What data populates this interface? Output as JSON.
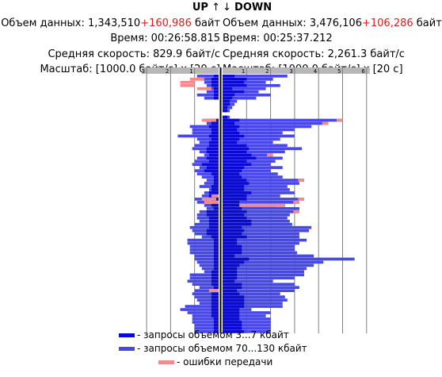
{
  "up": {
    "title": "UP",
    "title_arrow": "↑",
    "volume_label": "Объем данных:",
    "volume_value": "1,343,510",
    "volume_extra": "+160,986",
    "volume_unit": "байт",
    "time_label": "Время:",
    "time_value": "00:26:58.815",
    "speed_label": "Средняя скорость:",
    "speed_value": "829.9 байт/с",
    "scale_label": "Масштаб:",
    "scale_value": "[1000.0 байт/с] x [20 с]"
  },
  "down": {
    "title": "DOWN",
    "title_arrow": "↓",
    "volume_label": "Объем данных:",
    "volume_value": "3,476,106",
    "volume_extra": "+106,286",
    "volume_unit": "байт",
    "time_label": "Время:",
    "time_value": "00:25:37.212",
    "speed_label": "Средняя скорость:",
    "speed_value": "2,261.3 байт/с",
    "scale_label": "Масштаб:",
    "scale_value": "[1000.0 байт/с] x [20 с]"
  },
  "colors": {
    "small": "#0a0ad2",
    "large": "#4848e8",
    "error": "#f58a8a",
    "accent_red": "#e01b1b",
    "ruler": "#b8b8b8",
    "grid": "#808080"
  },
  "legend": [
    {
      "label": "- запросы объемом 3...7 кбайт",
      "color": "#0a0ad2"
    },
    {
      "label": "- запросы объемом 70...130 кбайт",
      "color": "#4848e8"
    },
    {
      "label": "- ошибки передачи",
      "color": "#f58a8a"
    }
  ],
  "chart_data": {
    "type": "bar",
    "orientation": "horizontal-butterfly",
    "up_axis": {
      "ticks": [
        "3",
        "2",
        "1"
      ],
      "xlim": [
        0,
        3
      ]
    },
    "down_axis": {
      "ticks": [
        "1",
        "2",
        "3",
        "4",
        "5",
        "6"
      ],
      "xlim": [
        0,
        6
      ]
    },
    "rows": [
      {
        "up": [
          0.2,
          0.9,
          0
        ],
        "down": [
          0.5,
          2.7,
          0
        ]
      },
      {
        "up": [
          0.3,
          0.7,
          1.2
        ],
        "down": [
          1.0,
          2.1,
          0
        ]
      },
      {
        "up": [
          0.3,
          0.6,
          1.6
        ],
        "down": [
          0.9,
          1.8,
          0
        ]
      },
      {
        "up": [
          0.3,
          0.5,
          1.6
        ],
        "down": [
          1.0,
          2.4,
          0
        ]
      },
      {
        "up": [
          0.2,
          0.4,
          0.9
        ],
        "down": [
          0.4,
          1.8,
          0
        ]
      },
      {
        "up": [
          0.2,
          0.5,
          0
        ],
        "down": [
          0.9,
          1.5,
          0
        ]
      },
      {
        "up": [
          0.2,
          0.9,
          0
        ],
        "down": [
          0.5,
          2.0,
          0
        ]
      },
      {
        "up": [
          0.2,
          0.6,
          0
        ],
        "down": [
          0.4,
          1.4,
          0
        ]
      },
      {
        "up": [
          0.0,
          0.0,
          0
        ],
        "down": [
          0.3,
          0.6,
          0
        ]
      },
      {
        "up": [
          0.0,
          0.0,
          0
        ],
        "down": [
          0.3,
          0.5,
          0
        ]
      },
      {
        "up": [
          0.0,
          0.0,
          0
        ],
        "down": [
          0.2,
          0.4,
          0
        ]
      },
      {
        "up": [
          0.0,
          0.0,
          0
        ],
        "down": [
          0.2,
          0.3,
          0
        ]
      },
      {
        "up": [
          0.0,
          0.0,
          0
        ],
        "down": [
          0.0,
          0.0,
          0
        ]
      },
      {
        "up": [
          0.0,
          0.0,
          0
        ],
        "down": [
          0.2,
          0.3,
          0
        ]
      },
      {
        "up": [
          0.3,
          0.6,
          0.7
        ],
        "down": [
          0.7,
          5.0,
          0.2
        ]
      },
      {
        "up": [
          0.3,
          0.5,
          0
        ],
        "down": [
          0.5,
          4.4,
          0.3
        ]
      },
      {
        "up": [
          0.4,
          1.2,
          0
        ],
        "down": [
          0.7,
          3.7,
          0
        ]
      },
      {
        "up": [
          0.3,
          1.1,
          0
        ],
        "down": [
          0.6,
          3.0,
          0
        ]
      },
      {
        "up": [
          0.3,
          1.1,
          0
        ],
        "down": [
          0.7,
          2.5,
          0
        ]
      },
      {
        "up": [
          0.4,
          1.7,
          0
        ],
        "down": [
          0.9,
          3.0,
          0
        ]
      },
      {
        "up": [
          0.3,
          0.9,
          0
        ],
        "down": [
          0.7,
          2.4,
          0
        ]
      },
      {
        "up": [
          0.4,
          0.8,
          0
        ],
        "down": [
          0.6,
          2.1,
          0
        ]
      },
      {
        "up": [
          0.4,
          1.0,
          0
        ],
        "down": [
          1.0,
          2.7,
          0
        ]
      },
      {
        "up": [
          0.5,
          1.1,
          0
        ],
        "down": [
          1.1,
          3.3,
          0
        ]
      },
      {
        "up": [
          0.5,
          0.8,
          0
        ],
        "down": [
          1.0,
          2.6,
          0
        ]
      },
      {
        "up": [
          0.4,
          0.6,
          0
        ],
        "down": [
          1.2,
          2.1,
          0.2
        ]
      },
      {
        "up": [
          0.5,
          0.9,
          0
        ],
        "down": [
          1.4,
          2.5,
          0
        ]
      },
      {
        "up": [
          0.4,
          1.0,
          0
        ],
        "down": [
          1.0,
          2.2,
          0
        ]
      },
      {
        "up": [
          0.7,
          1.1,
          0
        ],
        "down": [
          1.2,
          2.0,
          0
        ]
      },
      {
        "up": [
          0.5,
          0.8,
          0
        ],
        "down": [
          0.9,
          2.5,
          0
        ]
      },
      {
        "up": [
          0.6,
          1.0,
          0
        ],
        "down": [
          0.8,
          2.0,
          0
        ]
      },
      {
        "up": [
          0.3,
          0.9,
          0
        ],
        "down": [
          0.7,
          2.3,
          0
        ]
      },
      {
        "up": [
          0.2,
          0.7,
          0
        ],
        "down": [
          0.8,
          2.5,
          0
        ]
      },
      {
        "up": [
          0.2,
          0.5,
          0
        ],
        "down": [
          1.0,
          3.4,
          0.2
        ]
      },
      {
        "up": [
          0.2,
          0.6,
          0
        ],
        "down": [
          1.1,
          3.2,
          0
        ]
      },
      {
        "up": [
          0.3,
          0.8,
          0
        ],
        "down": [
          0.9,
          2.7,
          0
        ]
      },
      {
        "up": [
          0.3,
          0.4,
          0
        ],
        "down": [
          0.9,
          2.8,
          0
        ]
      },
      {
        "up": [
          0.4,
          0.6,
          0
        ],
        "down": [
          1.2,
          3.0,
          0
        ]
      },
      {
        "up": [
          0.4,
          0.7,
          0.3
        ],
        "down": [
          1.0,
          2.4,
          0
        ]
      },
      {
        "up": [
          0.3,
          1.0,
          0.7
        ],
        "down": [
          1.0,
          3.4,
          0.3
        ]
      },
      {
        "up": [
          0.3,
          0.9,
          0.6
        ],
        "down": [
          0.7,
          3.2,
          0.4
        ]
      },
      {
        "up": [
          0.3,
          0.6,
          0
        ],
        "down": [
          2.2,
          2.6,
          2.6
        ]
      },
      {
        "up": [
          0.2,
          0.5,
          0
        ],
        "down": [
          0.8,
          3.2,
          0
        ]
      },
      {
        "up": [
          0.5,
          0.8,
          0
        ],
        "down": [
          1.0,
          3.2,
          0.2
        ]
      },
      {
        "up": [
          0.5,
          0.9,
          0
        ],
        "down": [
          0.9,
          2.8,
          0
        ]
      },
      {
        "up": [
          0.4,
          0.9,
          0
        ],
        "down": [
          1.0,
          2.7,
          0
        ]
      },
      {
        "up": [
          0.4,
          0.8,
          0
        ],
        "down": [
          1.2,
          2.8,
          0
        ]
      },
      {
        "up": [
          0.4,
          1.0,
          0
        ],
        "down": [
          1.2,
          2.9,
          0
        ]
      },
      {
        "up": [
          0.4,
          1.2,
          0
        ],
        "down": [
          0.8,
          3.7,
          0
        ]
      },
      {
        "up": [
          0.5,
          1.1,
          0
        ],
        "down": [
          0.9,
          3.6,
          0
        ]
      },
      {
        "up": [
          0.5,
          1.0,
          0
        ],
        "down": [
          0.8,
          3.2,
          0
        ]
      },
      {
        "up": [
          0.3,
          0.7,
          0
        ],
        "down": [
          1.0,
          3.2,
          0
        ]
      },
      {
        "up": [
          0.2,
          1.3,
          0
        ],
        "down": [
          0.6,
          3.5,
          0
        ]
      },
      {
        "up": [
          0.2,
          1.3,
          0
        ],
        "down": [
          0.6,
          3.2,
          0
        ]
      },
      {
        "up": [
          0.2,
          1.2,
          0
        ],
        "down": [
          0.8,
          3.0,
          0
        ]
      },
      {
        "up": [
          0.2,
          1.2,
          0
        ],
        "down": [
          0.8,
          3.0,
          0
        ]
      },
      {
        "up": [
          0.2,
          1.2,
          0
        ],
        "down": [
          0.8,
          3.1,
          0
        ]
      },
      {
        "up": [
          0.2,
          1.0,
          0
        ],
        "down": [
          0.5,
          3.8,
          0
        ]
      },
      {
        "up": [
          0.2,
          1.0,
          0
        ],
        "down": [
          1.1,
          5.5,
          0
        ]
      },
      {
        "up": [
          0.2,
          0.9,
          0
        ],
        "down": [
          0.9,
          4.2,
          0
        ]
      },
      {
        "up": [
          0.2,
          0.8,
          0
        ],
        "down": [
          0.7,
          3.8,
          0
        ]
      },
      {
        "up": [
          0.2,
          0.7,
          0
        ],
        "down": [
          0.6,
          3.5,
          0
        ]
      },
      {
        "up": [
          0.3,
          0.6,
          0
        ],
        "down": [
          0.6,
          3.4,
          0
        ]
      },
      {
        "up": [
          0.3,
          1.2,
          0
        ],
        "down": [
          0.6,
          3.4,
          0
        ]
      },
      {
        "up": [
          0.3,
          1.2,
          0
        ],
        "down": [
          0.6,
          3.0,
          0
        ]
      },
      {
        "up": [
          0.3,
          1.3,
          0
        ],
        "down": [
          0.5,
          2.1,
          0
        ]
      },
      {
        "up": [
          0.3,
          1.1,
          0
        ],
        "down": [
          0.8,
          3.0,
          0
        ]
      },
      {
        "up": [
          0.2,
          0.8,
          0
        ],
        "down": [
          0.8,
          3.2,
          0
        ]
      },
      {
        "up": [
          0.2,
          1.0,
          0.4
        ],
        "down": [
          0.6,
          3.0,
          0
        ]
      },
      {
        "up": [
          0.3,
          1.1,
          0
        ],
        "down": [
          0.7,
          2.4,
          0
        ]
      },
      {
        "up": [
          0.3,
          1.0,
          0
        ],
        "down": [
          0.9,
          2.6,
          0
        ]
      },
      {
        "up": [
          0.3,
          0.9,
          0
        ],
        "down": [
          0.9,
          2.7,
          0
        ]
      },
      {
        "up": [
          0.3,
          0.8,
          0
        ],
        "down": [
          0.9,
          2.5,
          0
        ]
      },
      {
        "up": [
          0.3,
          1.4,
          0
        ],
        "down": [
          0.9,
          2.5,
          0
        ]
      },
      {
        "up": [
          0.3,
          1.6,
          0
        ],
        "down": [
          0.7,
          1.2,
          0
        ]
      },
      {
        "up": [
          0.3,
          1.3,
          0
        ],
        "down": [
          0.7,
          2.0,
          0
        ]
      },
      {
        "up": [
          0.3,
          1.1,
          0
        ],
        "down": [
          0.7,
          1.8,
          0
        ]
      },
      {
        "up": [
          0.2,
          1.1,
          0
        ],
        "down": [
          0.7,
          2.0,
          0
        ]
      },
      {
        "up": [
          0.2,
          1.1,
          0
        ],
        "down": [
          0.8,
          2.0,
          0
        ]
      },
      {
        "up": [
          0.2,
          1.0,
          0
        ],
        "down": [
          0.8,
          2.0,
          0
        ]
      },
      {
        "up": [
          0.2,
          1.0,
          0
        ],
        "down": [
          0.8,
          2.0,
          0
        ]
      },
      {
        "up": [
          0.2,
          1.0,
          0
        ],
        "down": [
          0.9,
          2.0,
          0
        ]
      }
    ]
  }
}
